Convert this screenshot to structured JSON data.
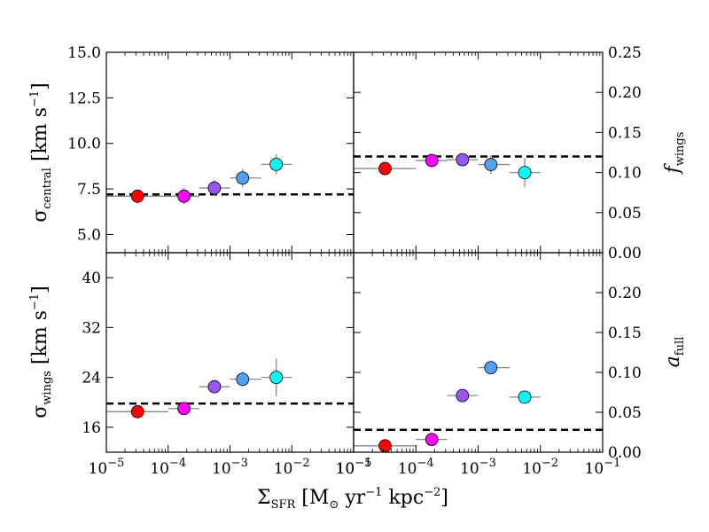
{
  "chart_data": {
    "type": "scatter",
    "x_axis": {
      "label": "Σ_SFR [M⊙ yr⁻¹ kpc⁻²]",
      "label_parts": {
        "sigma": "Σ",
        "sub": "SFR",
        "open": " [M",
        "sun": "⊙",
        "yr": " yr",
        "e1": "−1",
        "kpc": " kpc",
        "e2": "−2",
        "close": "]"
      },
      "scale": "log",
      "xlim_exp": [
        -5,
        -1
      ],
      "tick_labels_left": [
        "10",
        "10",
        "10",
        "10",
        "10"
      ],
      "tick_exponents_left": [
        "−5",
        "−4",
        "−3",
        "−2",
        "−1"
      ],
      "tick_labels_right": [
        "10",
        "10",
        "10",
        "10",
        "10"
      ],
      "tick_exponents_right": [
        "−5",
        "−4",
        "−3",
        "−2",
        "−1"
      ]
    },
    "panels": [
      {
        "id": "sigma_central",
        "ylabel": {
          "sym": "σ",
          "sub": "central",
          "unit": " [km s",
          "exp": "−1",
          "close": "]"
        },
        "ylim": [
          4.0,
          15.0
        ],
        "yticks": [
          5.0,
          7.5,
          10.0,
          12.5,
          15.0
        ],
        "ytick_labels": [
          "5.0",
          "7.5",
          "10.0",
          "12.5",
          "15.0"
        ],
        "reference_line": 7.2,
        "points": [
          {
            "x": 3.2e-05,
            "y": 7.1,
            "xlo": 1e-05,
            "xhi": 0.0001,
            "yerr": 0.4,
            "color": "#ff0000"
          },
          {
            "x": 0.00018,
            "y": 7.1,
            "xlo": 0.0001,
            "xhi": 0.00032,
            "yerr": 0.45,
            "color": "#ff00ff"
          },
          {
            "x": 0.00056,
            "y": 7.55,
            "xlo": 0.00032,
            "xhi": 0.001,
            "yerr": 0.45,
            "color": "#9955ee"
          },
          {
            "x": 0.0016,
            "y": 8.1,
            "xlo": 0.001,
            "xhi": 0.0032,
            "yerr": 0.5,
            "color": "#55a0ee"
          },
          {
            "x": 0.0056,
            "y": 8.85,
            "xlo": 0.0032,
            "xhi": 0.01,
            "yerr": 0.55,
            "color": "#00ffff"
          }
        ]
      },
      {
        "id": "f_wings",
        "ylabel": {
          "sym": "f",
          "sub": "wings"
        },
        "ylim": [
          0.0,
          0.25
        ],
        "yticks": [
          0.0,
          0.05,
          0.1,
          0.15,
          0.2,
          0.25
        ],
        "ytick_labels": [
          "0.00",
          "0.05",
          "0.10",
          "0.15",
          "0.20",
          "0.25"
        ],
        "reference_line": 0.12,
        "points": [
          {
            "x": 3.2e-05,
            "y": 0.105,
            "xlo": 1e-05,
            "xhi": 0.0001,
            "yerr": 0.005,
            "color": "#ff0000"
          },
          {
            "x": 0.00018,
            "y": 0.115,
            "xlo": 0.0001,
            "xhi": 0.00032,
            "yerr": 0.006,
            "color": "#ff00ff"
          },
          {
            "x": 0.00056,
            "y": 0.116,
            "xlo": 0.00032,
            "xhi": 0.001,
            "yerr": 0.008,
            "color": "#9955ee"
          },
          {
            "x": 0.0016,
            "y": 0.11,
            "xlo": 0.001,
            "xhi": 0.0032,
            "yerr": 0.012,
            "color": "#55a0ee"
          },
          {
            "x": 0.0056,
            "y": 0.1,
            "xlo": 0.0032,
            "xhi": 0.01,
            "yerr": 0.018,
            "color": "#00ffff"
          }
        ]
      },
      {
        "id": "sigma_wings",
        "ylabel": {
          "sym": "σ",
          "sub": "wings",
          "unit": " [km s",
          "exp": "−1",
          "close": "]"
        },
        "ylim": [
          12.0,
          44.0
        ],
        "yticks": [
          16,
          24,
          32,
          40
        ],
        "ytick_labels": [
          "16",
          "24",
          "32",
          "40"
        ],
        "reference_line": 19.8,
        "points": [
          {
            "x": 3.2e-05,
            "y": 18.5,
            "xlo": 1e-05,
            "xhi": 0.0001,
            "yerr": 0.5,
            "color": "#ff0000"
          },
          {
            "x": 0.00018,
            "y": 19.0,
            "xlo": 0.0001,
            "xhi": 0.00032,
            "yerr": 0.6,
            "color": "#ff00ff"
          },
          {
            "x": 0.00056,
            "y": 22.5,
            "xlo": 0.00032,
            "xhi": 0.001,
            "yerr": 0.8,
            "color": "#9955ee"
          },
          {
            "x": 0.0016,
            "y": 23.7,
            "xlo": 0.001,
            "xhi": 0.0032,
            "yerr": 1.2,
            "color": "#55a0ee"
          },
          {
            "x": 0.0056,
            "y": 24.0,
            "xlo": 0.0032,
            "xhi": 0.01,
            "yerr": 3.0,
            "color": "#00ffff"
          }
        ]
      },
      {
        "id": "a_full",
        "ylabel": {
          "sym": "a",
          "sub": "full"
        },
        "ylim": [
          0.0,
          0.25
        ],
        "yticks": [
          0.0,
          0.05,
          0.1,
          0.15,
          0.2
        ],
        "ytick_labels": [
          "0.00",
          "0.05",
          "0.10",
          "0.15",
          "0.20"
        ],
        "reference_line": 0.028,
        "points": [
          {
            "x": 3.2e-05,
            "y": 0.008,
            "xlo": 1e-05,
            "xhi": 0.0001,
            "yerr": 0.002,
            "color": "#ff0000"
          },
          {
            "x": 0.00018,
            "y": 0.016,
            "xlo": 0.0001,
            "xhi": 0.00032,
            "yerr": 0.002,
            "color": "#ff00ff"
          },
          {
            "x": 0.00056,
            "y": 0.071,
            "xlo": 0.00032,
            "xhi": 0.001,
            "yerr": 0.003,
            "color": "#9955ee"
          },
          {
            "x": 0.0016,
            "y": 0.106,
            "xlo": 0.001,
            "xhi": 0.0032,
            "yerr": 0.003,
            "color": "#55a0ee"
          },
          {
            "x": 0.0056,
            "y": 0.069,
            "xlo": 0.0032,
            "xhi": 0.01,
            "yerr": 0.003,
            "color": "#00ffff"
          }
        ]
      }
    ]
  }
}
